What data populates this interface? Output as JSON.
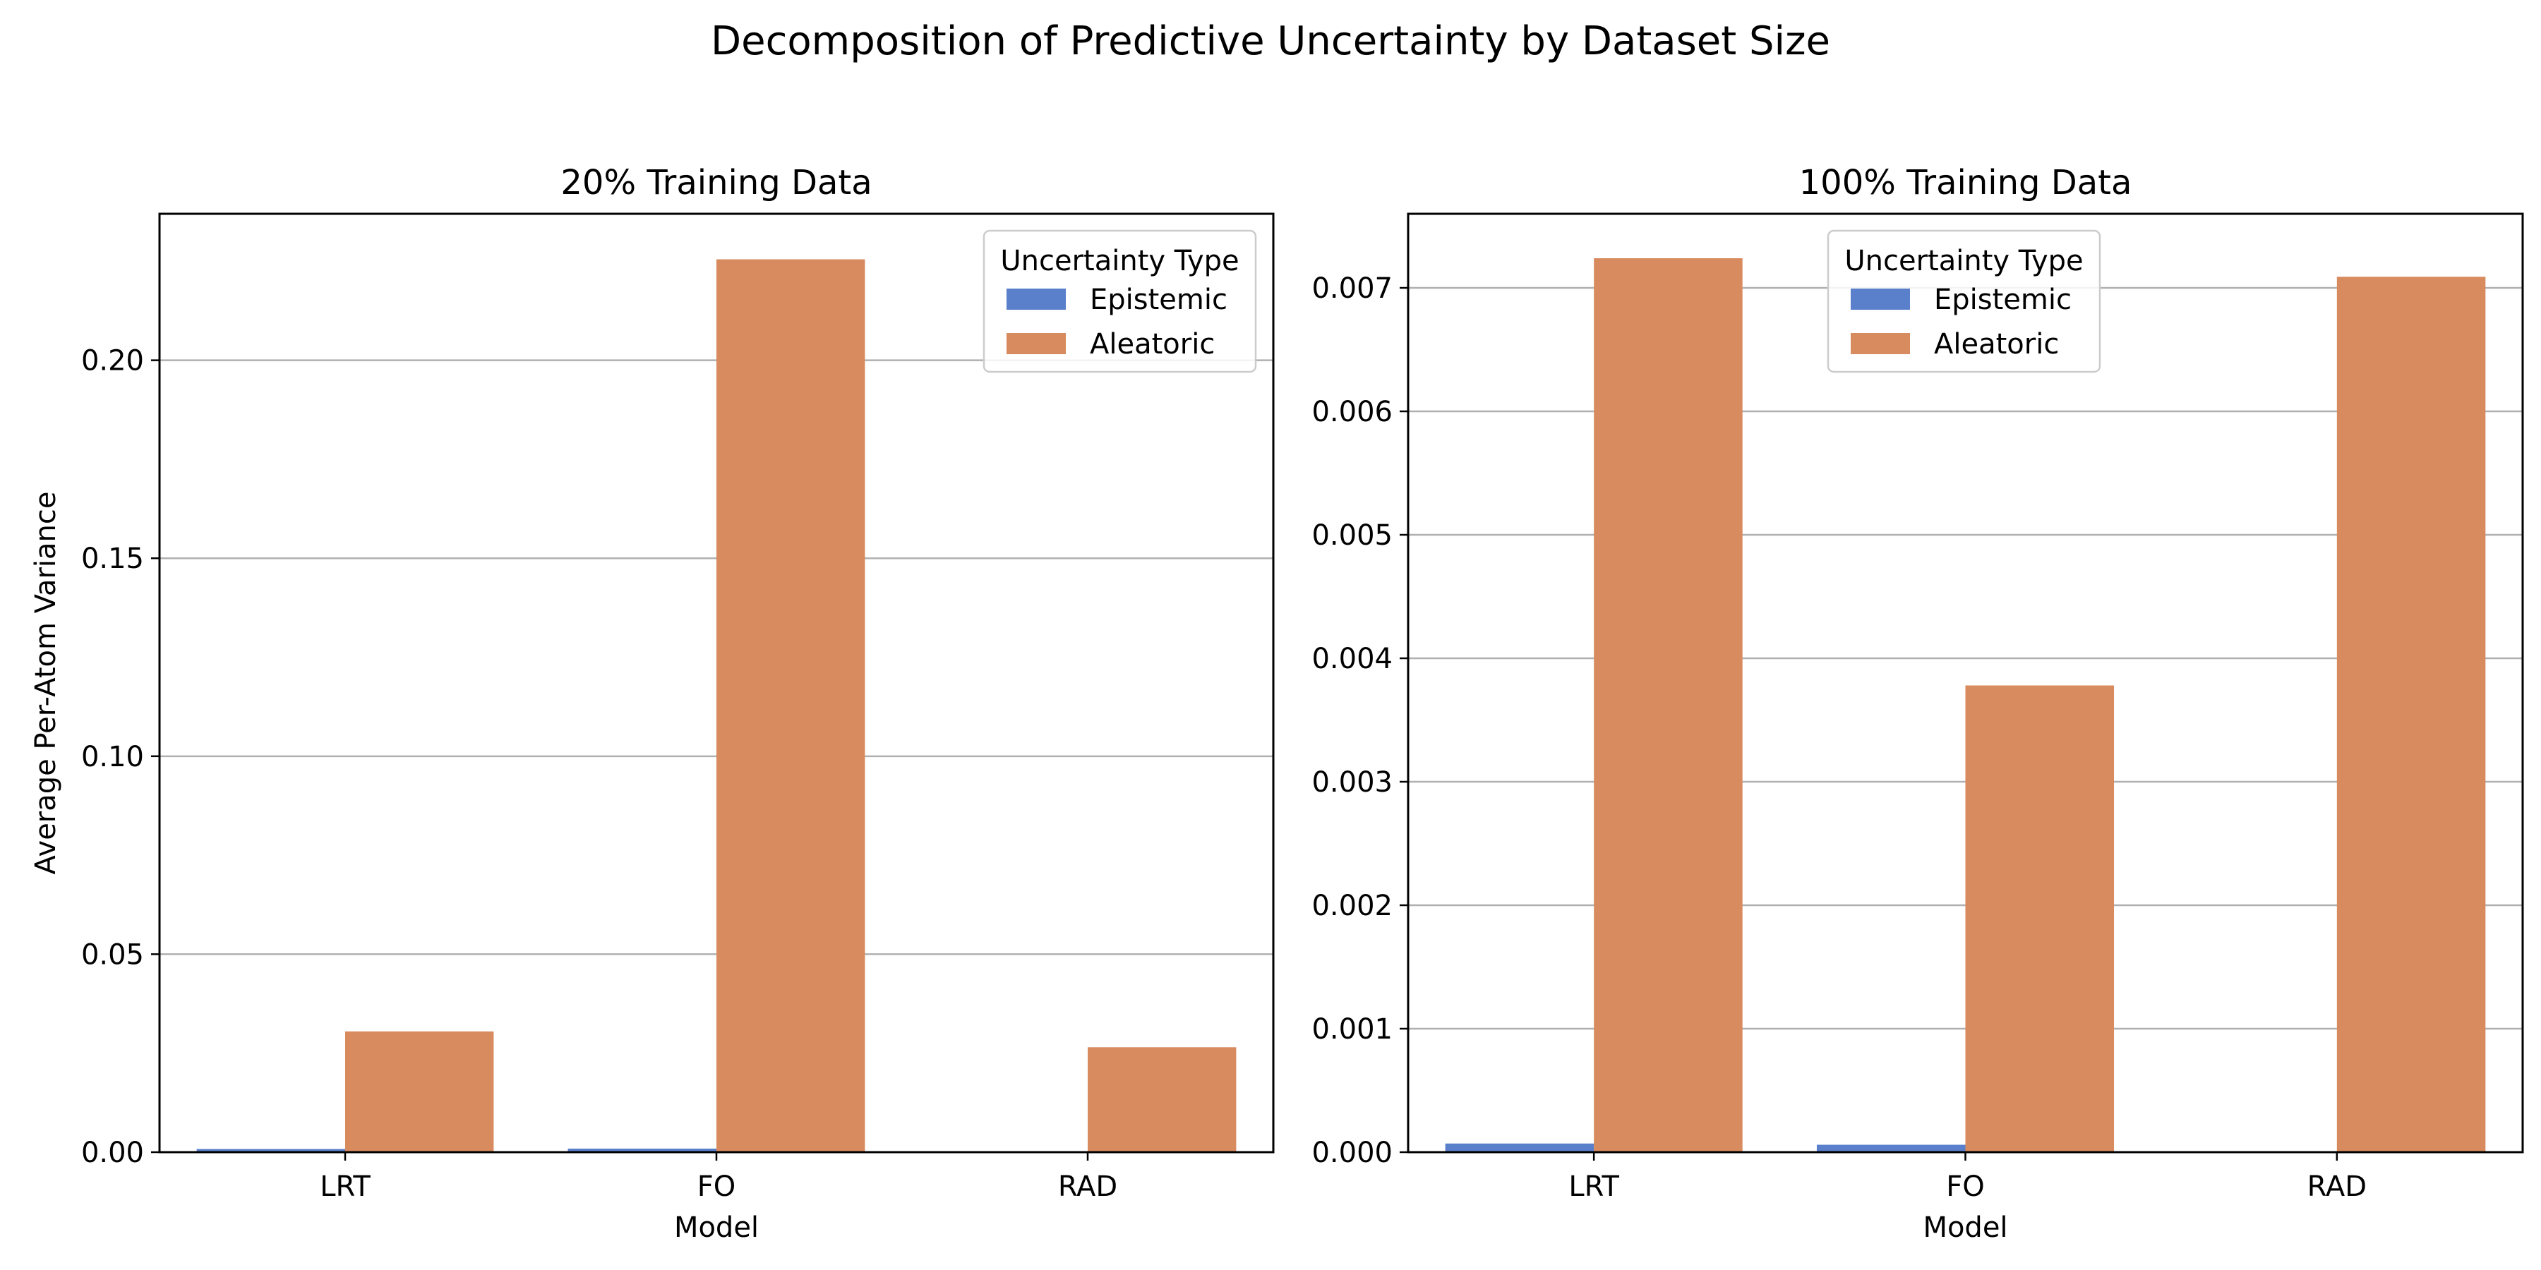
{
  "figure": {
    "title": "Decomposition of Predictive Uncertainty by Dataset Size"
  },
  "colors": {
    "epistemic": "#5a7fcb",
    "aleatoric": "#d88b5e",
    "grid": "#b0b0b0",
    "axes": "#000000"
  },
  "chart_data": [
    {
      "type": "bar",
      "title": "20% Training Data",
      "xlabel": "Model",
      "ylabel": "Average Per-Atom Variance",
      "categories": [
        "LRT",
        "FO",
        "RAD"
      ],
      "series": [
        {
          "name": "Epistemic",
          "values": [
            0.0008,
            0.0009,
            0.0
          ]
        },
        {
          "name": "Aleatoric",
          "values": [
            0.0305,
            0.2255,
            0.0265
          ]
        }
      ],
      "ylim": [
        0,
        0.237
      ],
      "yticks": [
        0.0,
        0.05,
        0.1,
        0.15,
        0.2
      ],
      "ytick_labels": [
        "0.00",
        "0.05",
        "0.10",
        "0.15",
        "0.20"
      ],
      "grid": "y",
      "legend": {
        "title": "Uncertainty Type",
        "placement": "upper right"
      }
    },
    {
      "type": "bar",
      "title": "100% Training Data",
      "xlabel": "Model",
      "ylabel": "",
      "categories": [
        "LRT",
        "FO",
        "RAD"
      ],
      "series": [
        {
          "name": "Epistemic",
          "values": [
            7e-05,
            6e-05,
            0.0
          ]
        },
        {
          "name": "Aleatoric",
          "values": [
            0.00724,
            0.00378,
            0.00709
          ]
        }
      ],
      "ylim": [
        0,
        0.0076
      ],
      "yticks": [
        0.0,
        0.001,
        0.002,
        0.003,
        0.004,
        0.005,
        0.006,
        0.007
      ],
      "ytick_labels": [
        "0.000",
        "0.001",
        "0.002",
        "0.003",
        "0.004",
        "0.005",
        "0.006",
        "0.007"
      ],
      "grid": "y",
      "legend": {
        "title": "Uncertainty Type",
        "placement": "upper center"
      }
    }
  ]
}
